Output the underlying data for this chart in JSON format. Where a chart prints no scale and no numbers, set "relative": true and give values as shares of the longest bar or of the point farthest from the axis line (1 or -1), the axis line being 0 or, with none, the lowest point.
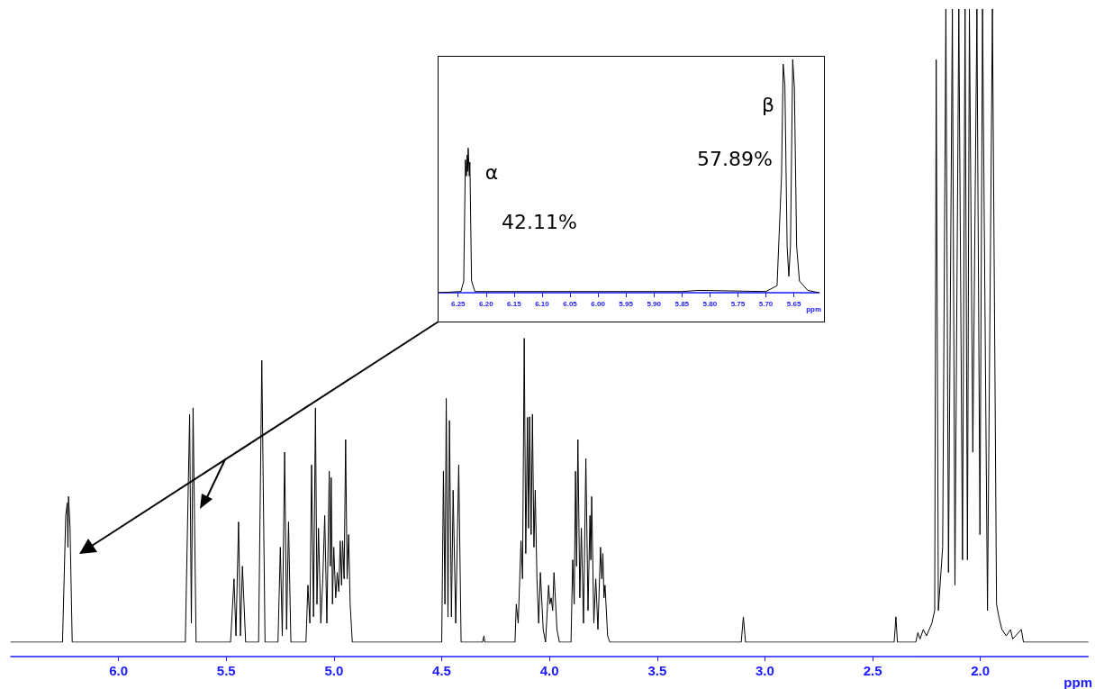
{
  "chart_data": [
    {
      "type": "line",
      "xlabel": "ppm",
      "relative": true,
      "tick_labels": "x",
      "line_style": "solid",
      "xlim": [
        6.5,
        1.5
      ],
      "xticks": [
        {
          "value": 6,
          "label": "6.0"
        },
        5.5,
        {
          "value": 5,
          "label": "5.0"
        },
        4.5,
        {
          "value": 4,
          "label": "4.0"
        },
        3.5,
        {
          "value": 3,
          "label": "3.0"
        },
        2.5,
        {
          "value": 2,
          "label": "2.0"
        }
      ],
      "series": [
        {
          "color": "#000000",
          "x": [
            6.5,
            6.26,
            6.245,
            6.238,
            6.235,
            6.232,
            6.225,
            6.215,
            5.69,
            5.67,
            5.662,
            5.654,
            5.64,
            5.48,
            5.464,
            5.455,
            5.443,
            5.434,
            5.425,
            5.41,
            5.35,
            5.335,
            5.32,
            5.26,
            5.249,
            5.24,
            5.229,
            5.22,
            5.211,
            5.2,
            5.13,
            5.121,
            5.112,
            5.104,
            5.095,
            5.086,
            5.079,
            5.072,
            5.061,
            5.052,
            5.043,
            5.033,
            5.022,
            5.017,
            5.013,
            5.007,
            5.001,
            4.992,
            4.985,
            4.978,
            4.971,
            4.965,
            4.96,
            4.953,
            4.946,
            4.939,
            4.932,
            4.925,
            4.915,
            4.5,
            4.492,
            4.485,
            4.479,
            4.471,
            4.464,
            4.455,
            4.447,
            4.435,
            4.421,
            4.41,
            4.31,
            4.304,
            4.3,
            4.16,
            4.154,
            4.145,
            4.132,
            4.125,
            4.117,
            4.11,
            4.102,
            4.097,
            4.092,
            4.085,
            4.079,
            4.072,
            4.066,
            4.058,
            4.05,
            4.042,
            4.029,
            4.018,
            4.004,
            3.998,
            3.992,
            3.985,
            3.979,
            3.965,
            3.954,
            3.9,
            3.892,
            3.885,
            3.879,
            3.874,
            3.868,
            3.859,
            3.852,
            3.842,
            3.831,
            3.821,
            3.812,
            3.808,
            3.804,
            3.794,
            3.785,
            3.775,
            3.763,
            3.757,
            3.752,
            3.747,
            3.742,
            3.73,
            3.72,
            3.11,
            3.1,
            3.09,
            2.4,
            2.392,
            2.385,
            2.3,
            2.29,
            2.28,
            2.265,
            2.25,
            2.225,
            2.212,
            2.205,
            2.195,
            2.175,
            2.16,
            2.148,
            2.13,
            2.118,
            2.1,
            2.083,
            2.071,
            2.06,
            2.051,
            2.035,
            2.016,
            2.002,
            1.99,
            1.967,
            1.944,
            1.925,
            1.914,
            1.9,
            1.88,
            1.86,
            1.85,
            1.81,
            1.8,
            1.5
          ],
          "values": [
            0,
            0,
            0.2,
            0.22,
            0.15,
            0.23,
            0.18,
            0,
            0,
            0.36,
            0.03,
            0.37,
            0,
            0,
            0.1,
            0.01,
            0.19,
            0.01,
            0.12,
            0,
            0,
            0.445,
            0,
            0,
            0.15,
            0.01,
            0.3,
            0.02,
            0.19,
            0,
            0,
            0.09,
            0.03,
            0.28,
            0.04,
            0.37,
            0.06,
            0.18,
            0.03,
            0.1,
            0.2,
            0.03,
            0.27,
            0.12,
            0.26,
            0.06,
            0.15,
            0.07,
            0.11,
            0.08,
            0.16,
            0.09,
            0.16,
            0.1,
            0.32,
            0.1,
            0.17,
            0.06,
            0,
            0,
            0.27,
            0.06,
            0.385,
            0.04,
            0.35,
            0.04,
            0.24,
            0.03,
            0.28,
            0,
            0,
            0.01,
            0,
            0,
            0.06,
            0.03,
            0.16,
            0.1,
            0.48,
            0.14,
            0.355,
            0.18,
            0.356,
            0.17,
            0.36,
            0.15,
            0.24,
            0.1,
            0.03,
            0.11,
            0.02,
            0,
            0.09,
            0.06,
            0.07,
            0.05,
            0.11,
            0.02,
            0,
            0,
            0.13,
            0.06,
            0.27,
            0.12,
            0.32,
            0.07,
            0.18,
            0.03,
            0.29,
            0.05,
            0.2,
            0.13,
            0.23,
            0.03,
            0.1,
            0.02,
            0.15,
            0.1,
            0.14,
            0.07,
            0.09,
            0.01,
            0,
            0,
            0.04,
            0,
            0,
            0.04,
            0,
            0,
            0.015,
            0.005,
            0.02,
            0.01,
            0.03,
            0.05,
            0.92,
            0.05,
            0.15,
            1,
            0.11,
            1,
            0.09,
            1,
            0.13,
            1,
            0.13,
            1,
            0.3,
            1,
            0.17,
            1,
            0.05,
            1,
            0.06,
            0.04,
            0.02,
            0.01,
            0.02,
            0.005,
            0.02,
            0,
            0
          ]
        }
      ]
    },
    {
      "type": "line",
      "xlabel": "ppm",
      "relative": true,
      "tick_labels": "x",
      "line_style": "solid",
      "xlim": [
        6.285,
        5.605
      ],
      "xticks": [
        6.25,
        {
          "value": 6.2,
          "label": "6.20"
        },
        6.15,
        {
          "value": 6.1,
          "label": "6.10"
        },
        6.05,
        {
          "value": 6,
          "label": "6.00"
        },
        5.95,
        {
          "value": 5.9,
          "label": "5.90"
        },
        5.85,
        {
          "value": 5.8,
          "label": "5.80"
        },
        5.75,
        {
          "value": 5.7,
          "label": "5.70"
        },
        5.65
      ],
      "annotations": [
        "α",
        "42.11%",
        "β",
        "57.89%"
      ],
      "series": [
        {
          "color": "#000000",
          "x": [
            6.285,
            6.245,
            6.24,
            6.237,
            6.235,
            6.234,
            6.233,
            6.232,
            6.23,
            6.229,
            6.226,
            6.22,
            6.05,
            5.85,
            5.82,
            5.7,
            5.68,
            5.672,
            5.669,
            5.666,
            5.662,
            5.659,
            5.656,
            5.652,
            5.649,
            5.645,
            5.64,
            5.625,
            5.605
          ],
          "values": [
            0,
            0.005,
            0.05,
            0.57,
            0.5,
            0.59,
            0.52,
            0.62,
            0.5,
            0.56,
            0.05,
            0.005,
            0.005,
            0.005,
            0.01,
            0.005,
            0.03,
            0.5,
            0.98,
            0.89,
            0.2,
            0.07,
            0.2,
            1,
            0.88,
            0.2,
            0.05,
            0.01,
            0
          ]
        }
      ]
    }
  ]
}
